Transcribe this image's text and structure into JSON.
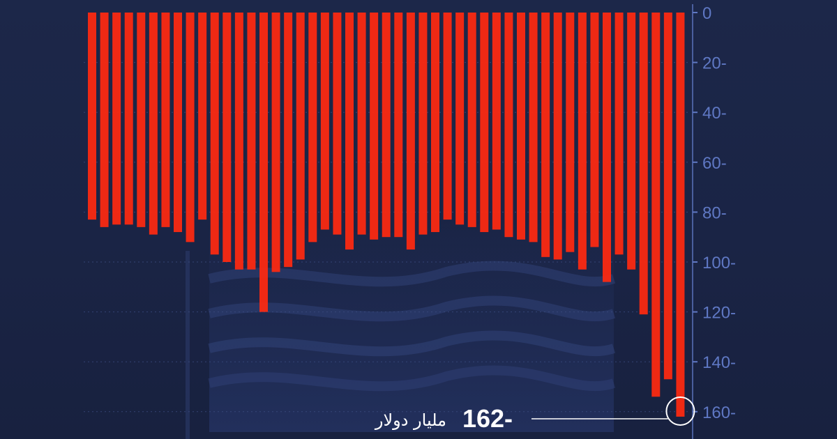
{
  "chart_data": {
    "type": "bar",
    "orientation": "downward",
    "y_axis_position": "right",
    "ylim": [
      0,
      162
    ],
    "y_ticks": [
      "0",
      "20-",
      "40-",
      "60-",
      "80-",
      "100-",
      "120-",
      "140-",
      "160-"
    ],
    "y_tick_values": [
      0,
      20,
      40,
      60,
      80,
      100,
      120,
      140,
      160
    ],
    "grid": true,
    "values": [
      -83,
      -86,
      -85,
      -85,
      -86,
      -89,
      -86,
      -88,
      -92,
      -83,
      -97,
      -100,
      -103,
      -103,
      -120,
      -104,
      -102,
      -99,
      -92,
      -87,
      -89,
      -95,
      -89,
      -91,
      -90,
      -90,
      -95,
      -89,
      -88,
      -83,
      -85,
      -86,
      -88,
      -87,
      -90,
      -91,
      -92,
      -98,
      -99,
      -96,
      -103,
      -94,
      -108,
      -97,
      -103,
      -121,
      -154,
      -147,
      -162
    ],
    "bar_color": "#ff2a10",
    "callout": {
      "value": "162-",
      "unit": "مليار دولار",
      "target_index": 48
    }
  },
  "colors": {
    "background": "#1b2547",
    "tick_label": "#5f78c4",
    "gridline": "#3b4c80",
    "callout_text": "#ffffff"
  }
}
